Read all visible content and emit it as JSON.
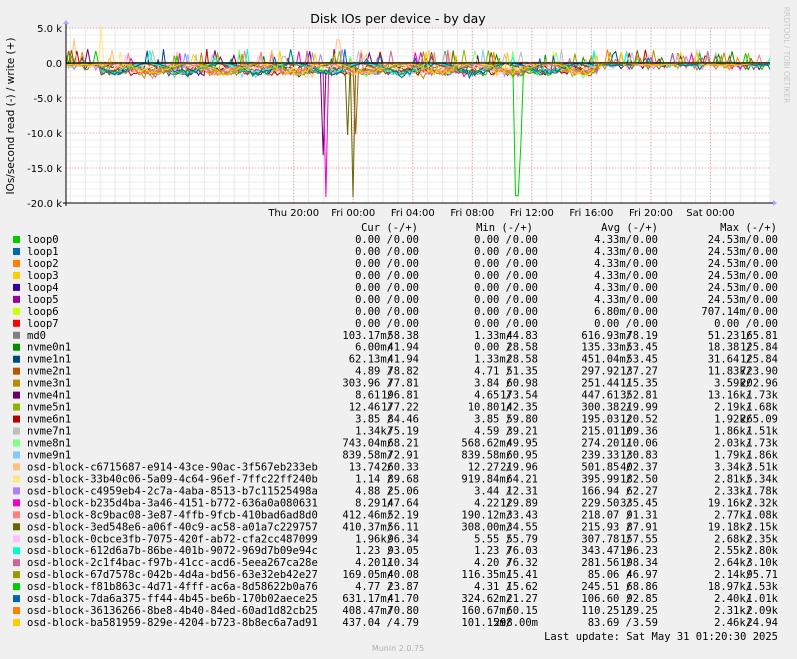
{
  "chart_data": {
    "type": "line",
    "title": "Disk IOs per device - by day",
    "ylabel": "IOs/second read (-) / write (+)",
    "ylim": [
      -20000,
      5000
    ],
    "yticks": [
      {
        "v": 5000,
        "label": "5.0 k"
      },
      {
        "v": 0,
        "label": "0.0"
      },
      {
        "v": -5000,
        "label": "-5.0 k"
      },
      {
        "v": -10000,
        "label": "-10.0 k"
      },
      {
        "v": -15000,
        "label": "-15.0 k"
      },
      {
        "v": -20000,
        "label": "-20.0 k"
      }
    ],
    "xrange_hours": [
      -15.3,
      32
    ],
    "xticks": [
      {
        "h": 0,
        "label": "Thu 20:00"
      },
      {
        "h": 4,
        "label": "Fri 00:00"
      },
      {
        "h": 8,
        "label": "Fri 04:00"
      },
      {
        "h": 12,
        "label": "Fri 08:00"
      },
      {
        "h": 16,
        "label": "Fri 12:00"
      },
      {
        "h": 20,
        "label": "Fri 16:00"
      },
      {
        "h": 24,
        "label": "Fri 20:00"
      },
      {
        "h": 28,
        "label": "Sat 00:00"
      }
    ],
    "grid": true,
    "legend_headers": {
      "cur": "Cur (-/+)",
      "min": "Min (-/+)",
      "avg": "Avg (-/+)",
      "max": "Max (-/+)"
    },
    "series": [
      {
        "name": "loop0",
        "color": "#00cc00",
        "cur": "0.00 /   0.00",
        "min": "0.00 /   0.00",
        "avg": "4.33m/   0.00",
        "max": "24.53m/   0.00"
      },
      {
        "name": "loop1",
        "color": "#0066b3",
        "cur": "0.00 /   0.00",
        "min": "0.00 /   0.00",
        "avg": "4.33m/   0.00",
        "max": "24.53m/   0.00"
      },
      {
        "name": "loop2",
        "color": "#ff8000",
        "cur": "0.00 /   0.00",
        "min": "0.00 /   0.00",
        "avg": "4.33m/   0.00",
        "max": "24.53m/   0.00"
      },
      {
        "name": "loop3",
        "color": "#ffcc00",
        "cur": "0.00 /   0.00",
        "min": "0.00 /   0.00",
        "avg": "4.33m/   0.00",
        "max": "24.53m/   0.00"
      },
      {
        "name": "loop4",
        "color": "#330099",
        "cur": "0.00 /   0.00",
        "min": "0.00 /   0.00",
        "avg": "4.33m/   0.00",
        "max": "24.53m/   0.00"
      },
      {
        "name": "loop5",
        "color": "#990099",
        "cur": "0.00 /   0.00",
        "min": "0.00 /   0.00",
        "avg": "4.33m/   0.00",
        "max": "24.53m/   0.00"
      },
      {
        "name": "loop6",
        "color": "#ccff00",
        "cur": "0.00 /   0.00",
        "min": "0.00 /   0.00",
        "avg": "6.80m/   0.00",
        "max": "707.14m/   0.00"
      },
      {
        "name": "loop7",
        "color": "#ff0000",
        "cur": "0.00 /   0.00",
        "min": "0.00 /   0.00",
        "avg": "0.00 /   0.00",
        "max": "0.00 /   0.00"
      },
      {
        "name": "md0",
        "color": "#808080",
        "cur": "103.17m/  58.38",
        "min": "1.33m/  44.83",
        "avg": "616.93m/  78.19",
        "max": "51.23 / 165.81"
      },
      {
        "name": "nvme0n1",
        "color": "#008f00",
        "cur": "6.00m/  41.94",
        "min": "0.00 /  28.58",
        "avg": "135.33m/  53.45",
        "max": "18.38 / 125.84"
      },
      {
        "name": "nvme1n1",
        "color": "#00487d",
        "cur": "62.13m/  41.94",
        "min": "1.33m/  28.58",
        "avg": "451.04m/  53.45",
        "max": "31.64 / 125.84"
      },
      {
        "name": "nvme2n1",
        "color": "#b35a00",
        "cur": "4.89 /  78.82",
        "min": "4.71 /  51.35",
        "avg": "297.92 / 137.27",
        "max": "11.83k/ 723.90"
      },
      {
        "name": "nvme3n1",
        "color": "#b38f00",
        "cur": "303.96 /  77.81",
        "min": "3.84 /  60.98",
        "avg": "251.44 / 115.35",
        "max": "3.59k/ 202.96"
      },
      {
        "name": "nvme4n1",
        "color": "#6b006b",
        "cur": "8.61 / 196.81",
        "min": "4.65 / 173.54",
        "avg": "447.61 / 352.81",
        "max": "13.16k/  1.73k"
      },
      {
        "name": "nvme5n1",
        "color": "#8fb300",
        "cur": "12.46 / 177.22",
        "min": "10.80 / 142.35",
        "avg": "300.38 / 219.99",
        "max": "2.19k/  1.68k"
      },
      {
        "name": "nvme6n1",
        "color": "#b30000",
        "cur": "3.85 /  84.46",
        "min": "3.85 /  59.80",
        "avg": "195.03 / 120.52",
        "max": "1.92k/ 265.09"
      },
      {
        "name": "nvme7n1",
        "color": "#bebebe",
        "cur": "1.34k/  75.19",
        "min": "4.59 /  39.21",
        "avg": "215.01 / 109.36",
        "max": "1.86k/  1.51k"
      },
      {
        "name": "nvme8n1",
        "color": "#80ff80",
        "cur": "743.04m/  68.21",
        "min": "568.62m/  49.95",
        "avg": "274.20 / 110.06",
        "max": "2.03k/  1.73k"
      },
      {
        "name": "nvme9n1",
        "color": "#80c9ff",
        "cur": "839.58m/  72.91",
        "min": "839.58m/  60.95",
        "avg": "239.33 / 130.83",
        "max": "1.79k/  1.86k"
      },
      {
        "name": "osd-block-c6715687-e914-43ce-90ac-3f567eb233eb",
        "color": "#ffc080",
        "cur": "13.74 / 260.33",
        "min": "12.27 / 219.96",
        "avg": "501.85 / 402.37",
        "max": "3.34k/  3.51k"
      },
      {
        "name": "osd-block-33b40c06-5a09-4c64-96ef-7ffc22ff240b",
        "color": "#ffe680",
        "cur": "1.14 /  89.68",
        "min": "919.84m/  64.21",
        "avg": "395.99 / 182.50",
        "max": "2.81k/  5.34k"
      },
      {
        "name": "osd-block-c4959eb4-2c7a-4aba-8513-b7c11525498a",
        "color": "#aa80ff",
        "cur": "4.88 /  25.06",
        "min": "3.44 /  12.31",
        "avg": "166.94 /  62.27",
        "max": "2.33k/  1.78k"
      },
      {
        "name": "osd-block-b235d4ba-3a46-4151-b772-636a0a080631",
        "color": "#ee00cc",
        "cur": "8.29 / 147.64",
        "min": "4.22 / 129.89",
        "avg": "229.50 / 335.45",
        "max": "19.16k/  2.32k"
      },
      {
        "name": "osd-block-8c9bac08-3e87-4ffb-9fcb-410bad6ad8d0",
        "color": "#ff8080",
        "cur": "412.46m/  52.19",
        "min": "190.12m/  33.43",
        "avg": "218.07 /  91.31",
        "max": "2.77k/  1.08k"
      },
      {
        "name": "osd-block-3ed548e6-a06f-40c9-ac58-a01a7c229757",
        "color": "#666600",
        "cur": "410.37m/  56.11",
        "min": "308.00m/  34.55",
        "avg": "215.93 /  87.91",
        "max": "19.18k/  2.15k"
      },
      {
        "name": "osd-block-0cbce3fb-7075-420f-ab72-cfa2cc487099",
        "color": "#ffbfff",
        "cur": "1.96k/  96.34",
        "min": "5.55 /  55.79",
        "avg": "307.78 / 157.55",
        "max": "2.68k/  2.35k"
      },
      {
        "name": "osd-block-612d6a7b-86be-401b-9072-969d7b09e94c",
        "color": "#00ffcc",
        "cur": "1.23 /  93.05",
        "min": "1.23 /  76.03",
        "avg": "343.47 / 196.23",
        "max": "2.55k/  2.80k"
      },
      {
        "name": "osd-block-2c1f4bac-f97b-41cc-acd6-5eea267ca28e",
        "color": "#cc6699",
        "cur": "4.20 / 110.34",
        "min": "4.20 /  76.32",
        "avg": "281.56 / 198.34",
        "max": "2.64k/  3.10k"
      },
      {
        "name": "osd-block-67d7578c-042b-4d4a-bd56-63e32eb42e27",
        "color": "#999900",
        "cur": "169.05m/  40.08",
        "min": "116.35m/  15.41",
        "avg": "85.06 /  46.97",
        "max": "2.14k/  95.71"
      },
      {
        "name": "osd-block-f81b863c-4d71-4fff-ac6a-8d58622b0a76",
        "color": "#00cc00",
        "cur": "4.77 /  23.87",
        "min": "4.31 /  15.62",
        "avg": "245.51 /  68.86",
        "max": "18.97k/  1.53k"
      },
      {
        "name": "osd-block-7da6a375-ff44-4b45-be6b-170b02aece25",
        "color": "#0066b3",
        "cur": "631.17m/  41.70",
        "min": "324.62m/  21.27",
        "avg": "106.60 /  92.85",
        "max": "2.40k/  1.01k"
      },
      {
        "name": "osd-block-36136266-8be8-4b40-84ed-60ad1d82cb25",
        "color": "#ff8000",
        "cur": "408.47m/  70.80",
        "min": "160.67m/  60.15",
        "avg": "110.25 / 139.25",
        "max": "2.31k/  2.09k"
      },
      {
        "name": "osd-block-ba581959-829e-4204-b723-8b8ec6a7ad91",
        "color": "#ffcc00",
        "cur": "437.04 /   4.79",
        "min": "101.15m/ 298.00m",
        "avg": "83.69 /   3.59",
        "max": "2.46k/  24.94"
      }
    ]
  },
  "footer": {
    "last_update": "Last update: Sat May 31 01:20:30 2025",
    "watermark": "RRDTOOL / TOBI OETIKER",
    "version": "Munin 2.0.75"
  }
}
